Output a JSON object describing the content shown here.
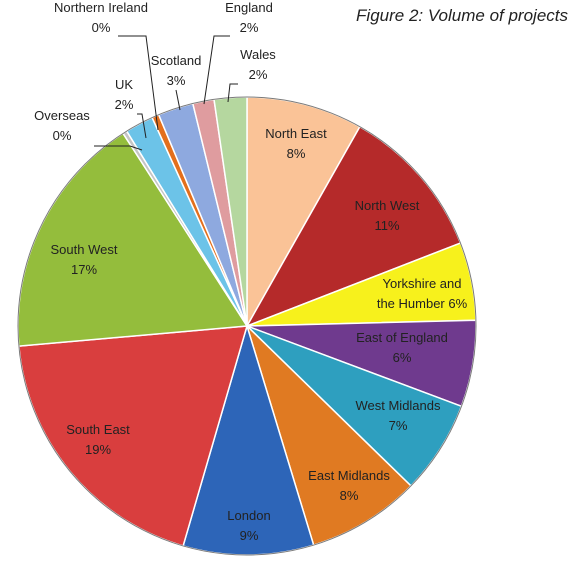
{
  "chart_data": {
    "type": "pie",
    "title": "Figure 2: Volume of projects",
    "slices": [
      {
        "name": "North East",
        "value": 8.2,
        "label": "8%",
        "color": "#fac397"
      },
      {
        "name": "North West",
        "value": 10.9,
        "label": "11%",
        "color": "#b52a2a"
      },
      {
        "name": "Yorkshire and the Humber",
        "value": 5.5,
        "label": "6%",
        "color": "#f7f11c"
      },
      {
        "name": "East of England",
        "value": 6.1,
        "label": "6%",
        "color": "#6f3a8e"
      },
      {
        "name": "West Midlands",
        "value": 6.6,
        "label": "7%",
        "color": "#2e9fbf"
      },
      {
        "name": "East Midlands",
        "value": 8.0,
        "label": "8%",
        "color": "#e07a22"
      },
      {
        "name": "London",
        "value": 9.2,
        "label": "9%",
        "color": "#2d65b8"
      },
      {
        "name": "South East",
        "value": 19.1,
        "label": "19%",
        "color": "#d93e3e"
      },
      {
        "name": "South West",
        "value": 17.3,
        "label": "17%",
        "color": "#94bd3c"
      },
      {
        "name": "Overseas",
        "value": 0.3,
        "label": "0%",
        "color": "#c5c5c5"
      },
      {
        "name": "UK",
        "value": 2.0,
        "label": "2%",
        "color": "#6cc3e8"
      },
      {
        "name": "Northern Ireland",
        "value": 0.5,
        "label": "0%",
        "color": "#e36f1c"
      },
      {
        "name": "Scotland",
        "value": 2.5,
        "label": "3%",
        "color": "#8ea9df"
      },
      {
        "name": "England",
        "value": 1.5,
        "label": "2%",
        "color": "#df9c9f"
      },
      {
        "name": "Wales",
        "value": 2.3,
        "label": "2%",
        "color": "#b5d79f"
      }
    ]
  }
}
